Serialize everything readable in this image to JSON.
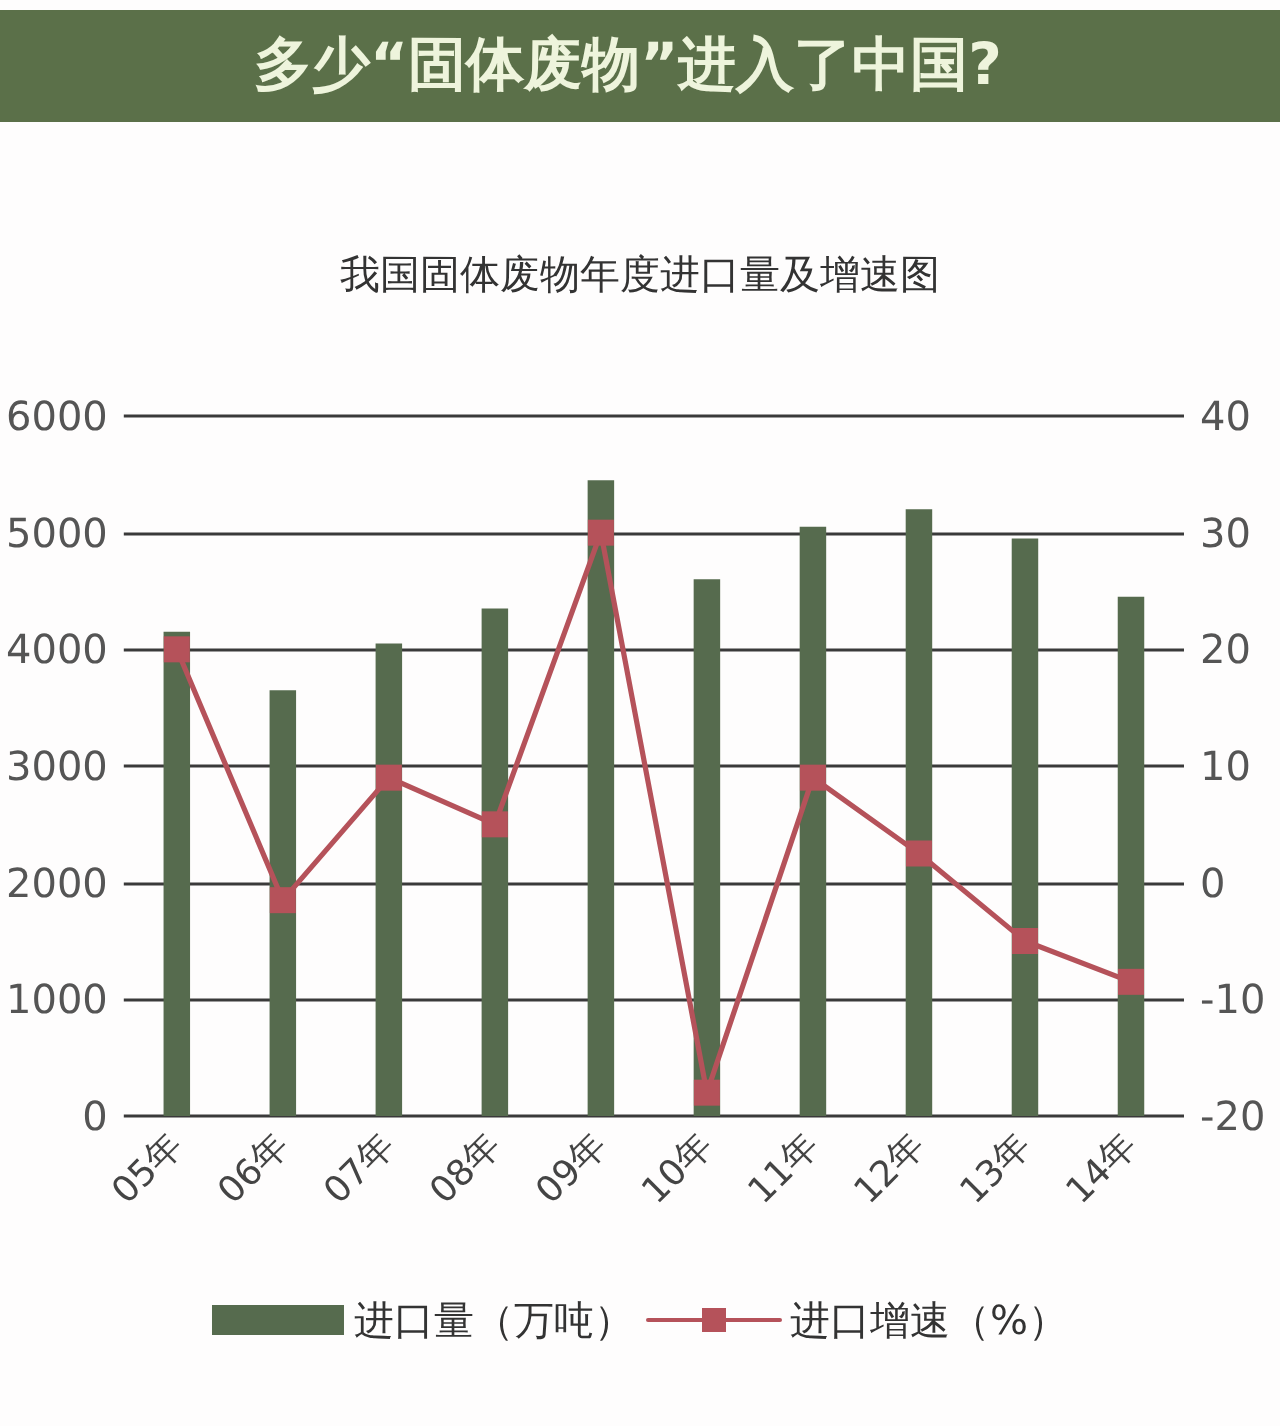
{
  "chart_data": {
    "type": "bar",
    "title": "多少“固体废物”进入了中国?",
    "subtitle": "我国固体废物年度进口量及增速图",
    "categories": [
      "05年",
      "06年",
      "07年",
      "08年",
      "09年",
      "10年",
      "11年",
      "12年",
      "13年",
      "14年"
    ],
    "series": [
      {
        "name": "进口量（万吨）",
        "color": "#566b4e",
        "values": [
          4150,
          3650,
          4050,
          4350,
          5450,
          4600,
          5050,
          5200,
          4950,
          4450
        ]
      },
      {
        "name": "进口增速（%）",
        "type": "line",
        "axis": "y2",
        "color": "#b5525a",
        "values": [
          20,
          -1.5,
          9,
          5,
          30,
          -18,
          9,
          2.5,
          -5,
          -8.5
        ]
      }
    ],
    "ylim": [
      0,
      6000
    ],
    "yticks": [
      0,
      1000,
      2000,
      3000,
      4000,
      5000,
      6000
    ],
    "y2lim": [
      -20,
      40
    ],
    "y2ticks": [
      -20,
      -10,
      0,
      10,
      20,
      30,
      40
    ],
    "grid": "y",
    "legend": "bottom",
    "marker": "square"
  }
}
